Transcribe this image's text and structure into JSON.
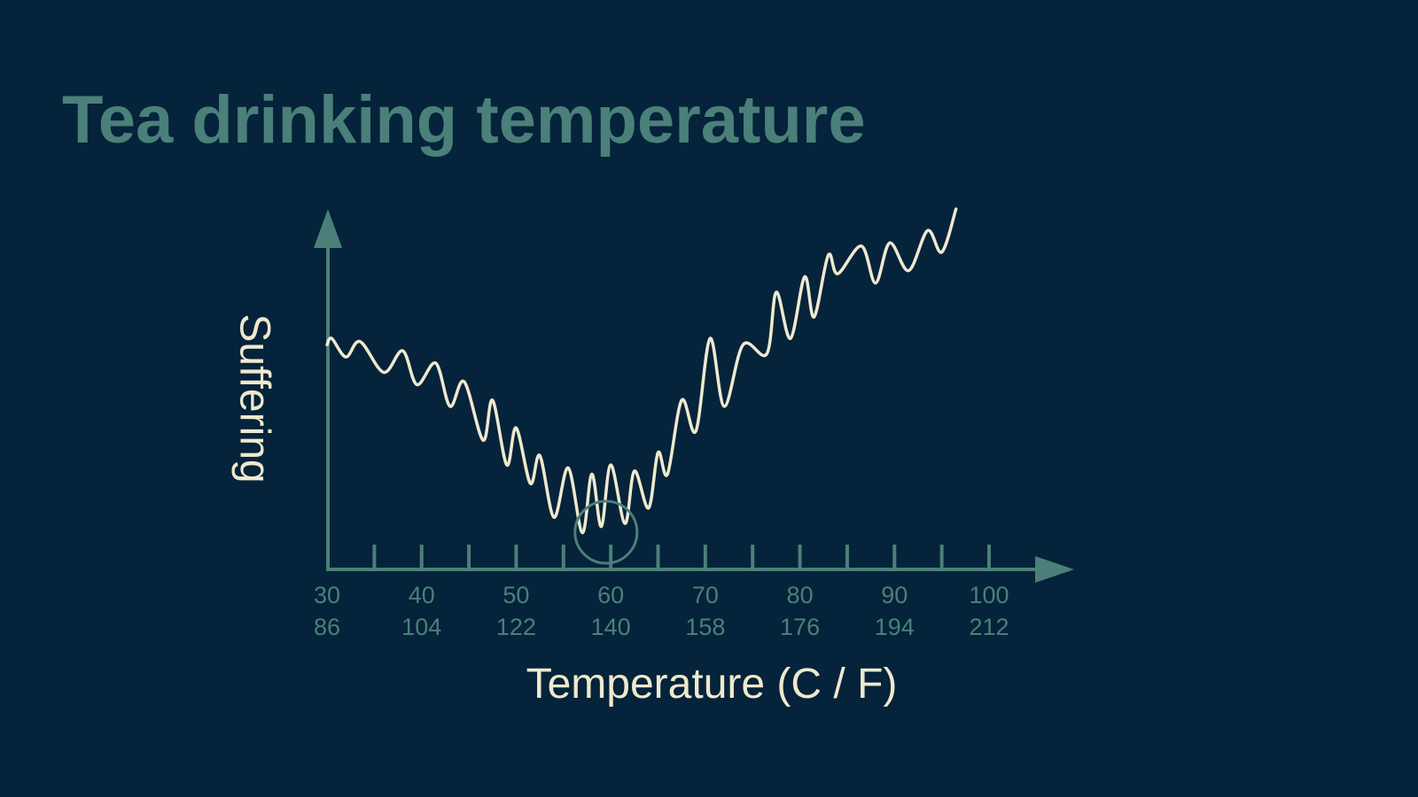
{
  "slide": {
    "title": "Tea drinking temperature"
  },
  "colors": {
    "background": "#05233a",
    "accent": "#4a8079",
    "curve": "#efe9cf"
  },
  "chart_data": {
    "type": "line",
    "title": "Tea drinking temperature",
    "xlabel": "Temperature (C / F)",
    "ylabel": "Suffering",
    "xlim": [
      30,
      100
    ],
    "ticks": [
      {
        "c": "30",
        "f": "86"
      },
      {
        "c": "40",
        "f": "104"
      },
      {
        "c": "50",
        "f": "122"
      },
      {
        "c": "60",
        "f": "140"
      },
      {
        "c": "70",
        "f": "158"
      },
      {
        "c": "80",
        "f": "176"
      },
      {
        "c": "90",
        "f": "194"
      },
      {
        "c": "100",
        "f": "212"
      }
    ],
    "minor_ticks": [
      35,
      40,
      45,
      50,
      55,
      60,
      65,
      70,
      75,
      80,
      85,
      90,
      95,
      100
    ],
    "y_axis_values_shown": false,
    "grid": false,
    "optimum_marker": {
      "x": 59.5,
      "shape": "circle"
    },
    "series": [
      {
        "x": [
          30.0,
          30.5,
          32.0,
          33.5,
          36.0,
          38.0,
          39.5,
          41.5,
          43.0,
          44.5,
          46.5,
          47.5,
          49.0,
          50.0,
          51.5,
          52.5,
          54.0,
          55.5,
          57.0,
          58.0,
          59.0,
          60.0,
          61.5,
          62.5,
          64.0,
          65.0,
          66.0,
          67.5,
          69.0,
          70.5,
          72.0,
          74.0,
          76.5,
          77.5,
          79.0,
          80.5,
          81.5,
          83.0,
          84.0,
          86.5,
          88.0,
          89.5,
          91.5,
          93.5,
          95.0,
          96.5
        ],
        "y": [
          64,
          66,
          60,
          65,
          55,
          62,
          51,
          58,
          44,
          52,
          33,
          46,
          25,
          37,
          19,
          28,
          8,
          24,
          3,
          22,
          5,
          25,
          6,
          23,
          11,
          29,
          22,
          46,
          36,
          66,
          44,
          64,
          61,
          81,
          66,
          86,
          73,
          93,
          87,
          96,
          84,
          97,
          88,
          101,
          94,
          108
        ]
      }
    ]
  }
}
